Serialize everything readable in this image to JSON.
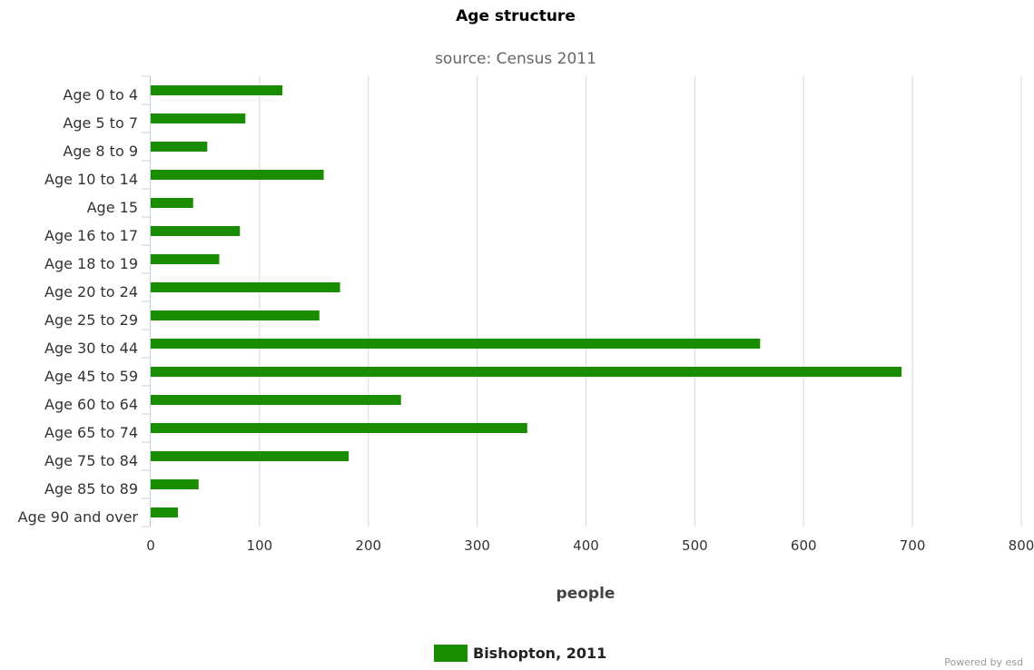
{
  "chart_data": {
    "type": "bar",
    "orientation": "horizontal",
    "title": "Age structure",
    "subtitle": "source: Census 2011",
    "categories": [
      "Age 0 to 4",
      "Age 5 to 7",
      "Age 8 to 9",
      "Age 10 to 14",
      "Age 15",
      "Age 16 to 17",
      "Age 18 to 19",
      "Age 20 to 24",
      "Age 25 to 29",
      "Age 30 to 44",
      "Age 45 to 59",
      "Age 60 to 64",
      "Age 65 to 74",
      "Age 75 to 84",
      "Age 85 to 89",
      "Age 90 and over"
    ],
    "series": [
      {
        "name": "Bishopton, 2011",
        "color": "#1a8c00",
        "values": [
          121,
          87,
          52,
          159,
          39,
          82,
          63,
          174,
          155,
          560,
          690,
          230,
          346,
          182,
          44,
          25
        ]
      }
    ],
    "xlabel": "people",
    "ylabel": "",
    "xlim": [
      0,
      800
    ],
    "xticks": [
      0,
      100,
      200,
      300,
      400,
      500,
      600,
      700,
      800
    ],
    "grid": "vertical",
    "legend_position": "bottom-center"
  },
  "credit": "Powered by esd"
}
